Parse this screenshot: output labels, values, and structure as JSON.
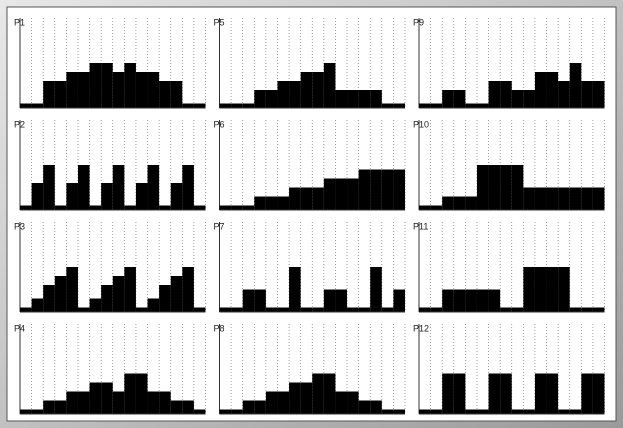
{
  "chart_data": [
    {
      "type": "bar",
      "title": "P1",
      "values": [
        0.5,
        0.5,
        3,
        3,
        4,
        4,
        5,
        5,
        4,
        5,
        4,
        4,
        3,
        3,
        0.5,
        0.5
      ],
      "color": "#000000",
      "ylim": [
        0,
        10
      ],
      "grid": true
    },
    {
      "type": "bar",
      "title": "P5",
      "values": [
        0.5,
        0.5,
        0.5,
        2,
        2,
        3,
        3,
        4,
        4,
        5,
        2,
        2,
        2,
        2,
        0.5,
        0.5
      ],
      "color": "#000000",
      "ylim": [
        0,
        10
      ],
      "grid": true
    },
    {
      "type": "bar",
      "title": "P9",
      "values": [
        0.5,
        0.5,
        2,
        2,
        0.5,
        0.5,
        3,
        3,
        2,
        2,
        4,
        4,
        3,
        5,
        3,
        3
      ],
      "color": "#000000",
      "ylim": [
        0,
        10
      ],
      "grid": true
    },
    {
      "type": "bar",
      "title": "P2",
      "values": [
        0.5,
        3,
        5,
        0.5,
        3,
        5,
        0.5,
        3,
        5,
        0.5,
        3,
        5,
        0.5,
        3,
        5,
        0.5
      ],
      "color": "#000000",
      "ylim": [
        0,
        10
      ],
      "grid": true
    },
    {
      "type": "bar",
      "title": "P6",
      "values": [
        0.5,
        0.5,
        0.5,
        1.5,
        1.5,
        1.5,
        2.5,
        2.5,
        2.5,
        3.5,
        3.5,
        3.5,
        4.5,
        4.5,
        4.5,
        4.5
      ],
      "color": "#000000",
      "ylim": [
        0,
        10
      ],
      "grid": true
    },
    {
      "type": "bar",
      "title": "P10",
      "values": [
        0.5,
        0.5,
        1.5,
        1.5,
        1.5,
        5,
        5,
        5,
        5,
        2.5,
        2.5,
        2.5,
        2.5,
        2.5,
        2.5,
        2.5
      ],
      "color": "#000000",
      "ylim": [
        0,
        10
      ],
      "grid": true
    },
    {
      "type": "bar",
      "title": "P3",
      "values": [
        0.5,
        1.5,
        3,
        4,
        5,
        0.5,
        1.5,
        3,
        4,
        5,
        0.5,
        1.5,
        3,
        4,
        5,
        0.5
      ],
      "color": "#000000",
      "ylim": [
        0,
        10
      ],
      "grid": true
    },
    {
      "type": "bar",
      "title": "P7",
      "values": [
        0.5,
        0.5,
        2.5,
        2.5,
        0.5,
        0.5,
        5,
        0.5,
        0.5,
        2.5,
        2.5,
        0.5,
        0.5,
        5,
        0.5,
        2.5
      ],
      "color": "#000000",
      "ylim": [
        0,
        10
      ],
      "grid": true
    },
    {
      "type": "bar",
      "title": "P11",
      "values": [
        0.5,
        0.5,
        2.5,
        2.5,
        2.5,
        2.5,
        2.5,
        0.5,
        0.5,
        5,
        5,
        5,
        5,
        0.5,
        0.5,
        0.5
      ],
      "color": "#000000",
      "ylim": [
        0,
        10
      ],
      "grid": true
    },
    {
      "type": "bar",
      "title": "P4",
      "values": [
        0.5,
        0.5,
        1.5,
        1.5,
        2.5,
        2.5,
        3.5,
        3.5,
        2.5,
        4.5,
        4.5,
        2.5,
        2.5,
        1.5,
        1.5,
        0.5
      ],
      "color": "#000000",
      "ylim": [
        0,
        10
      ],
      "grid": true
    },
    {
      "type": "bar",
      "title": "P8",
      "values": [
        0.5,
        0.5,
        1.5,
        1.5,
        2.5,
        2.5,
        3.5,
        3.5,
        4.5,
        4.5,
        2.5,
        2.5,
        1.5,
        1.5,
        0.5,
        0.5
      ],
      "color": "#000000",
      "ylim": [
        0,
        10
      ],
      "grid": true
    },
    {
      "type": "bar",
      "title": "P12",
      "values": [
        0.5,
        0.5,
        4.5,
        4.5,
        0.5,
        0.5,
        4.5,
        4.5,
        0.5,
        0.5,
        4.5,
        4.5,
        0.5,
        0.5,
        4.5,
        4.5
      ],
      "color": "#000000",
      "ylim": [
        0,
        10
      ],
      "grid": true
    }
  ]
}
